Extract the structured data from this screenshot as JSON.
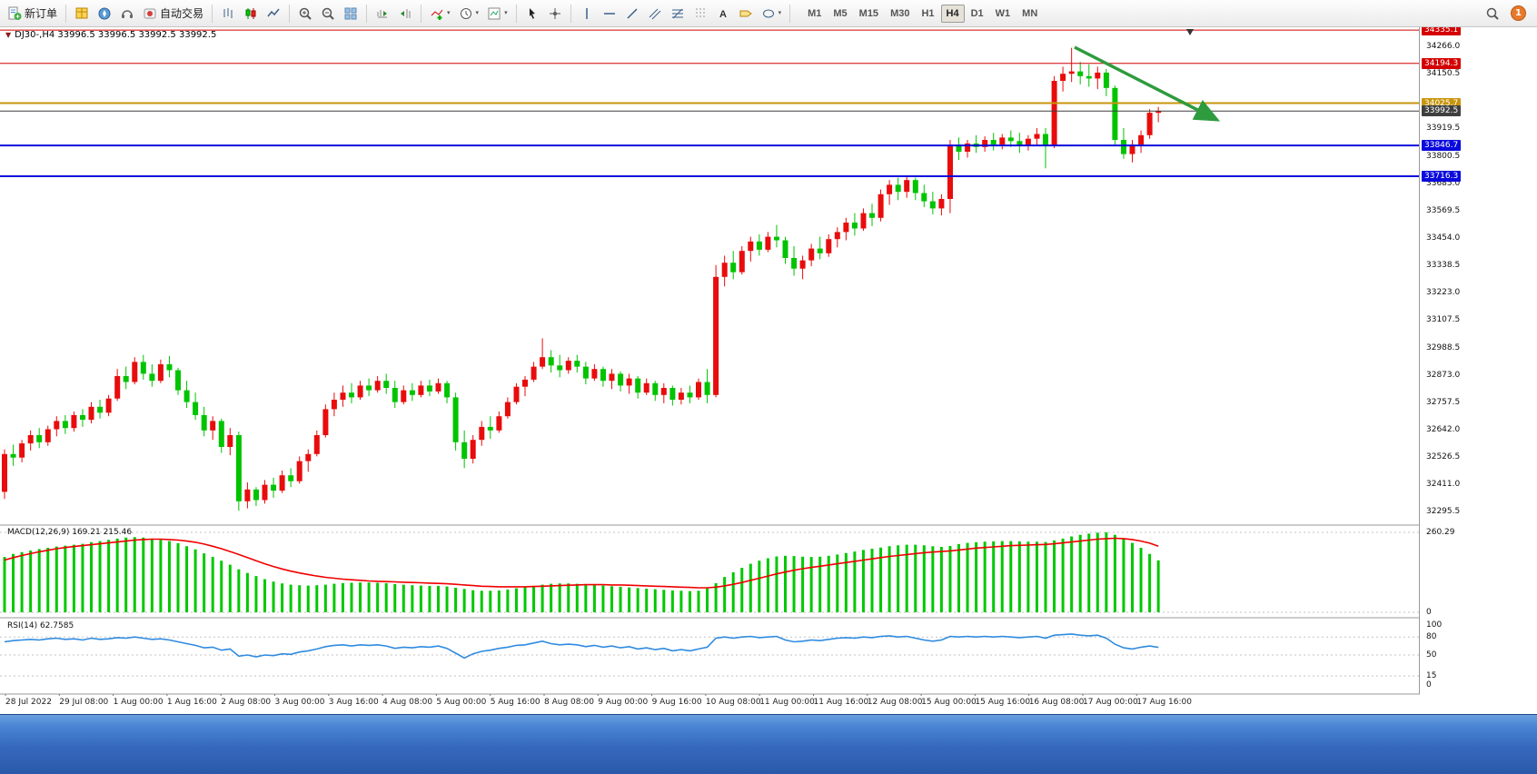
{
  "toolbar": {
    "new_order": "新订单",
    "autotrading": "自动交易",
    "timeframes": [
      "M1",
      "M5",
      "M15",
      "M30",
      "H1",
      "H4",
      "D1",
      "W1",
      "MN"
    ],
    "active_timeframe": "H4",
    "notification_count": "1"
  },
  "chart_header": {
    "marker": "▼",
    "ohlc": "DJ30-,H4 33996.5 33996.5 33992.5 33992.5"
  },
  "chart_data": {
    "type": "candlestick",
    "symbol": "DJ30-",
    "timeframe": "H4",
    "colors": {
      "bull": "#e80c0c",
      "bear": "#00c400",
      "macd_hist": "#00c800",
      "macd_signal": "#f00000",
      "rsi_line": "#2f8be0",
      "arrow": "#2e9b3e"
    },
    "levels": [
      {
        "price": 34335.1,
        "label": "34335.1",
        "color": "#d40000",
        "width": 1
      },
      {
        "price": 34194.3,
        "label": "34194.3",
        "color": "#d40000",
        "width": 1
      },
      {
        "price": 34025.7,
        "label": "34025.7",
        "color": "#c8960c",
        "width": 2
      },
      {
        "price": 33992.5,
        "label": "33992.5",
        "color": "#3f3f3f",
        "width": 1
      },
      {
        "price": 33846.7,
        "label": "33846.7",
        "color": "#0a0adc",
        "width": 2
      },
      {
        "price": 33716.3,
        "label": "33716.3",
        "color": "#0a0adc",
        "width": 2
      }
    ],
    "price_axis": {
      "ticks": [
        "34266.0",
        "34150.5",
        "33919.5",
        "33800.5",
        "33685.0",
        "33569.5",
        "33454.0",
        "33338.5",
        "33223.0",
        "33107.5",
        "32988.5",
        "32873.0",
        "32757.5",
        "32642.0",
        "32526.5",
        "32411.0",
        "32295.5"
      ]
    },
    "time_ticks": [
      "28 Jul 2022",
      "29 Jul 08:00",
      "1 Aug 00:00",
      "1 Aug 16:00",
      "2 Aug 08:00",
      "3 Aug 00:00",
      "3 Aug 16:00",
      "4 Aug 08:00",
      "5 Aug 00:00",
      "5 Aug 16:00",
      "8 Aug 08:00",
      "9 Aug 00:00",
      "9 Aug 16:00",
      "10 Aug 08:00",
      "11 Aug 00:00",
      "11 Aug 16:00",
      "12 Aug 08:00",
      "15 Aug 00:00",
      "15 Aug 16:00",
      "16 Aug 08:00",
      "17 Aug 00:00",
      "17 Aug 16:00"
    ],
    "candles": [
      [
        32380,
        32560,
        32350,
        32540
      ],
      [
        32540,
        32580,
        32490,
        32525
      ],
      [
        32525,
        32600,
        32505,
        32585
      ],
      [
        32585,
        32640,
        32555,
        32620
      ],
      [
        32620,
        32650,
        32565,
        32590
      ],
      [
        32590,
        32660,
        32575,
        32645
      ],
      [
        32645,
        32700,
        32615,
        32680
      ],
      [
        32680,
        32705,
        32625,
        32650
      ],
      [
        32650,
        32720,
        32635,
        32705
      ],
      [
        32705,
        32730,
        32655,
        32685
      ],
      [
        32685,
        32760,
        32670,
        32740
      ],
      [
        32740,
        32770,
        32690,
        32715
      ],
      [
        32715,
        32790,
        32700,
        32775
      ],
      [
        32775,
        32900,
        32765,
        32870
      ],
      [
        32870,
        32910,
        32815,
        32845
      ],
      [
        32845,
        32950,
        32835,
        32930
      ],
      [
        32930,
        32960,
        32855,
        32880
      ],
      [
        32880,
        32920,
        32825,
        32850
      ],
      [
        32850,
        32940,
        32840,
        32920
      ],
      [
        32920,
        32955,
        32865,
        32895
      ],
      [
        32895,
        32905,
        32790,
        32810
      ],
      [
        32810,
        32850,
        32735,
        32760
      ],
      [
        32760,
        32800,
        32685,
        32705
      ],
      [
        32705,
        32740,
        32615,
        32640
      ],
      [
        32640,
        32700,
        32600,
        32680
      ],
      [
        32680,
        32690,
        32545,
        32570
      ],
      [
        32570,
        32650,
        32535,
        32620
      ],
      [
        32620,
        32635,
        32300,
        32340
      ],
      [
        32340,
        32420,
        32310,
        32390
      ],
      [
        32390,
        32400,
        32320,
        32345
      ],
      [
        32345,
        32430,
        32330,
        32410
      ],
      [
        32410,
        32440,
        32355,
        32385
      ],
      [
        32385,
        32470,
        32375,
        32450
      ],
      [
        32450,
        32480,
        32400,
        32425
      ],
      [
        32425,
        32530,
        32415,
        32510
      ],
      [
        32510,
        32560,
        32465,
        32540
      ],
      [
        32540,
        32640,
        32530,
        32620
      ],
      [
        32620,
        32750,
        32610,
        32730
      ],
      [
        32730,
        32800,
        32700,
        32770
      ],
      [
        32770,
        32830,
        32740,
        32800
      ],
      [
        32800,
        32840,
        32755,
        32780
      ],
      [
        32780,
        32850,
        32770,
        32830
      ],
      [
        32830,
        32860,
        32785,
        32810
      ],
      [
        32810,
        32870,
        32800,
        32850
      ],
      [
        32850,
        32880,
        32795,
        32820
      ],
      [
        32820,
        32850,
        32735,
        32760
      ],
      [
        32760,
        32830,
        32750,
        32810
      ],
      [
        32810,
        32840,
        32765,
        32790
      ],
      [
        32790,
        32850,
        32780,
        32830
      ],
      [
        32830,
        32855,
        32785,
        32805
      ],
      [
        32805,
        32860,
        32795,
        32840
      ],
      [
        32840,
        32850,
        32755,
        32780
      ],
      [
        32780,
        32800,
        32555,
        32590
      ],
      [
        32590,
        32640,
        32480,
        32520
      ],
      [
        32520,
        32620,
        32500,
        32600
      ],
      [
        32600,
        32680,
        32575,
        32655
      ],
      [
        32655,
        32700,
        32605,
        32640
      ],
      [
        32640,
        32720,
        32630,
        32700
      ],
      [
        32700,
        32780,
        32690,
        32760
      ],
      [
        32760,
        32840,
        32750,
        32825
      ],
      [
        32825,
        32870,
        32785,
        32855
      ],
      [
        32855,
        32930,
        32845,
        32910
      ],
      [
        32910,
        33030,
        32900,
        32950
      ],
      [
        32950,
        32980,
        32885,
        32915
      ],
      [
        32915,
        32960,
        32865,
        32895
      ],
      [
        32895,
        32950,
        32880,
        32935
      ],
      [
        32935,
        32960,
        32885,
        32910
      ],
      [
        32910,
        32930,
        32835,
        32860
      ],
      [
        32860,
        32920,
        32850,
        32900
      ],
      [
        32900,
        32910,
        32825,
        32850
      ],
      [
        32850,
        32900,
        32815,
        32880
      ],
      [
        32880,
        32890,
        32805,
        32830
      ],
      [
        32830,
        32880,
        32795,
        32860
      ],
      [
        32860,
        32870,
        32775,
        32800
      ],
      [
        32800,
        32860,
        32790,
        32840
      ],
      [
        32840,
        32850,
        32765,
        32790
      ],
      [
        32790,
        32840,
        32755,
        32820
      ],
      [
        32820,
        32830,
        32745,
        32770
      ],
      [
        32770,
        32820,
        32750,
        32800
      ],
      [
        32800,
        32830,
        32755,
        32780
      ],
      [
        32780,
        32860,
        32770,
        32845
      ],
      [
        32845,
        32900,
        32755,
        32790
      ],
      [
        32790,
        33340,
        32780,
        33290
      ],
      [
        33290,
        33380,
        33250,
        33350
      ],
      [
        33350,
        33400,
        33280,
        33310
      ],
      [
        33310,
        33420,
        33300,
        33400
      ],
      [
        33400,
        33460,
        33355,
        33440
      ],
      [
        33440,
        33470,
        33380,
        33405
      ],
      [
        33405,
        33480,
        33395,
        33460
      ],
      [
        33460,
        33510,
        33415,
        33445
      ],
      [
        33445,
        33460,
        33345,
        33370
      ],
      [
        33370,
        33420,
        33295,
        33325
      ],
      [
        33325,
        33380,
        33280,
        33360
      ],
      [
        33360,
        33430,
        33335,
        33410
      ],
      [
        33410,
        33460,
        33365,
        33390
      ],
      [
        33390,
        33470,
        33375,
        33450
      ],
      [
        33450,
        33500,
        33415,
        33480
      ],
      [
        33480,
        33540,
        33445,
        33520
      ],
      [
        33520,
        33560,
        33465,
        33495
      ],
      [
        33495,
        33580,
        33485,
        33560
      ],
      [
        33560,
        33600,
        33505,
        33540
      ],
      [
        33540,
        33660,
        33525,
        33640
      ],
      [
        33640,
        33700,
        33595,
        33680
      ],
      [
        33680,
        33710,
        33615,
        33650
      ],
      [
        33650,
        33720,
        33625,
        33700
      ],
      [
        33700,
        33710,
        33615,
        33645
      ],
      [
        33645,
        33680,
        33585,
        33610
      ],
      [
        33610,
        33650,
        33555,
        33580
      ],
      [
        33580,
        33640,
        33550,
        33620
      ],
      [
        33620,
        33870,
        33560,
        33850
      ],
      [
        33850,
        33880,
        33785,
        33820
      ],
      [
        33820,
        33870,
        33795,
        33855
      ],
      [
        33855,
        33890,
        33815,
        33840
      ],
      [
        33840,
        33885,
        33820,
        33870
      ],
      [
        33870,
        33900,
        33825,
        33850
      ],
      [
        33850,
        33895,
        33830,
        33880
      ],
      [
        33880,
        33910,
        33840,
        33865
      ],
      [
        33865,
        33900,
        33815,
        33845
      ],
      [
        33845,
        33890,
        33825,
        33875
      ],
      [
        33875,
        33920,
        33845,
        33895
      ],
      [
        33895,
        33920,
        33750,
        33845
      ],
      [
        33845,
        34140,
        33835,
        34120
      ],
      [
        34120,
        34180,
        34075,
        34150
      ],
      [
        34150,
        34260,
        34115,
        34160
      ],
      [
        34160,
        34200,
        34105,
        34140
      ],
      [
        34140,
        34190,
        34095,
        34130
      ],
      [
        34130,
        34180,
        34085,
        34155
      ],
      [
        34155,
        34170,
        34055,
        34090
      ],
      [
        34090,
        34100,
        33845,
        33870
      ],
      [
        33870,
        33920,
        33790,
        33810
      ],
      [
        33810,
        33870,
        33775,
        33850
      ],
      [
        33850,
        33910,
        33815,
        33890
      ],
      [
        33890,
        34000,
        33875,
        33985
      ],
      [
        33985,
        34010,
        33945,
        33992.5
      ]
    ],
    "indicators": {
      "macd": {
        "label": "MACD(12,26,9) 169.21 215.46",
        "axis": [
          {
            "label": "260.29",
            "value": 260.29
          },
          {
            "label": "0",
            "value": 0
          }
        ],
        "values": [
          180,
          190,
          196,
          201,
          206,
          210,
          214,
          217,
          220,
          223,
          228,
          232,
          236,
          240,
          243,
          245,
          243,
          240,
          236,
          232,
          225,
          215,
          205,
          192,
          180,
          168,
          155,
          140,
          128,
          118,
          108,
          100,
          94,
          90,
          88,
          87,
          88,
          90,
          93,
          95,
          96,
          97,
          97,
          96,
          95,
          92,
          90,
          88,
          87,
          86,
          86,
          84,
          80,
          76,
          72,
          70,
          70,
          71,
          74,
          78,
          82,
          86,
          90,
          93,
          94,
          94,
          93,
          91,
          89,
          87,
          85,
          83,
          81,
          79,
          77,
          75,
          73,
          71,
          70,
          69,
          70,
          78,
          95,
          115,
          130,
          145,
          158,
          168,
          176,
          182,
          184,
          183,
          181,
          180,
          181,
          184,
          188,
          193,
          198,
          203,
          207,
          211,
          215,
          218,
          220,
          220,
          218,
          215,
          213,
          216,
          222,
          226,
          228,
          230,
          231,
          232,
          232,
          231,
          230,
          230,
          229,
          234,
          240,
          247,
          252,
          256,
          259,
          260.29,
          252,
          240,
          226,
          210,
          190,
          169.21
        ],
        "signal": [
          170,
          178,
          185,
          191,
          197,
          202,
          207,
          211,
          214,
          217,
          220,
          223,
          226,
          229,
          232,
          235,
          237,
          238,
          238,
          237,
          235,
          232,
          228,
          222,
          215,
          207,
          198,
          188,
          178,
          168,
          158,
          149,
          141,
          134,
          128,
          123,
          118,
          114,
          111,
          108,
          106,
          104,
          102,
          101,
          100,
          99,
          98,
          97,
          96,
          95,
          94,
          93,
          91,
          89,
          87,
          85,
          84,
          83,
          83,
          83,
          83,
          84,
          85,
          86,
          87,
          88,
          89,
          90,
          90,
          90,
          89,
          89,
          88,
          87,
          86,
          85,
          84,
          83,
          82,
          81,
          80,
          80,
          82,
          86,
          91,
          97,
          104,
          111,
          118,
          125,
          131,
          137,
          142,
          146,
          150,
          154,
          158,
          162,
          166,
          170,
          174,
          178,
          182,
          185,
          188,
          191,
          194,
          196,
          198,
          200,
          203,
          206,
          209,
          211,
          213,
          215,
          217,
          218,
          219,
          220,
          221,
          223,
          226,
          229,
          232,
          235,
          238,
          240,
          241,
          240,
          237,
          232,
          225,
          215.46
        ]
      },
      "rsi": {
        "label": "RSI(14) 62.7585",
        "axis": [
          "100",
          "80",
          "50",
          "15",
          "0"
        ],
        "levels": [
          80,
          50,
          15
        ],
        "values": [
          72,
          74,
          75,
          76,
          75,
          77,
          78,
          76,
          77,
          75,
          78,
          76,
          77,
          79,
          78,
          80,
          78,
          76,
          77,
          75,
          72,
          69,
          66,
          62,
          63,
          58,
          60,
          48,
          50,
          47,
          50,
          49,
          52,
          51,
          55,
          57,
          60,
          64,
          66,
          67,
          65,
          67,
          66,
          67,
          65,
          61,
          63,
          62,
          64,
          63,
          65,
          61,
          53,
          45,
          52,
          56,
          58,
          61,
          63,
          66,
          67,
          70,
          73,
          69,
          67,
          68,
          67,
          64,
          66,
          63,
          65,
          62,
          64,
          60,
          62,
          59,
          61,
          57,
          59,
          57,
          60,
          63,
          78,
          80,
          78,
          80,
          81,
          79,
          80,
          81,
          75,
          72,
          73,
          75,
          74,
          76,
          78,
          79,
          78,
          80,
          79,
          81,
          82,
          80,
          81,
          78,
          75,
          73,
          75,
          81,
          80,
          81,
          80,
          81,
          80,
          81,
          80,
          79,
          80,
          81,
          78,
          83,
          84,
          85,
          83,
          82,
          83,
          78,
          68,
          62,
          60,
          63,
          65,
          62.7585
        ]
      }
    }
  }
}
